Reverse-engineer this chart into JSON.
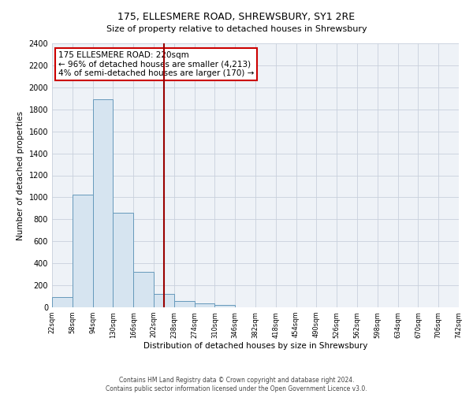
{
  "title": "175, ELLESMERE ROAD, SHREWSBURY, SY1 2RE",
  "subtitle": "Size of property relative to detached houses in Shrewsbury",
  "xlabel": "Distribution of detached houses by size in Shrewsbury",
  "ylabel": "Number of detached properties",
  "bin_edges": [
    22,
    58,
    94,
    130,
    166,
    202,
    238,
    274,
    310,
    346,
    382,
    418,
    454,
    490,
    526,
    562,
    598,
    634,
    670,
    706,
    742
  ],
  "bin_counts": [
    90,
    1025,
    1890,
    860,
    325,
    120,
    55,
    35,
    20,
    0,
    0,
    0,
    0,
    0,
    0,
    0,
    0,
    0,
    0,
    0
  ],
  "bar_facecolor": "#d6e4f0",
  "bar_edgecolor": "#6699bb",
  "property_line_x": 220,
  "property_line_color": "#990000",
  "annotation_box_edgecolor": "#cc0000",
  "annotation_lines": [
    "175 ELLESMERE ROAD: 220sqm",
    "← 96% of detached houses are smaller (4,213)",
    "4% of semi-detached houses are larger (170) →"
  ],
  "ylim": [
    0,
    2400
  ],
  "yticks": [
    0,
    200,
    400,
    600,
    800,
    1000,
    1200,
    1400,
    1600,
    1800,
    2000,
    2200,
    2400
  ],
  "tick_labels": [
    "22sqm",
    "58sqm",
    "94sqm",
    "130sqm",
    "166sqm",
    "202sqm",
    "238sqm",
    "274sqm",
    "310sqm",
    "346sqm",
    "382sqm",
    "418sqm",
    "454sqm",
    "490sqm",
    "526sqm",
    "562sqm",
    "598sqm",
    "634sqm",
    "670sqm",
    "706sqm",
    "742sqm"
  ],
  "footer_lines": [
    "Contains HM Land Registry data © Crown copyright and database right 2024.",
    "Contains public sector information licensed under the Open Government Licence v3.0."
  ],
  "background_color": "#ffffff",
  "axes_facecolor": "#eef2f7",
  "grid_color": "#c8d0dc",
  "title_fontsize": 9,
  "subtitle_fontsize": 8,
  "xlabel_fontsize": 7.5,
  "ylabel_fontsize": 7.5,
  "xtick_fontsize": 6,
  "ytick_fontsize": 7,
  "annot_fontsize": 7.5,
  "footer_fontsize": 5.5
}
